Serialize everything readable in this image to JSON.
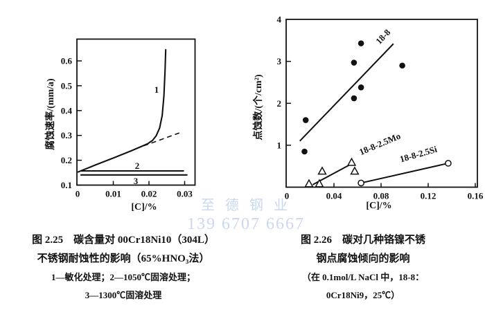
{
  "page": {
    "background": "#ffffff",
    "ink": "#111111"
  },
  "watermark": {
    "line1": "至 德 钢 业",
    "line2": "139 6707 6667",
    "color": "#c9d7f0"
  },
  "figures": {
    "left": {
      "caption": [
        "图 2.25　碳含量对 00Cr18Ni10（304L）",
        "不锈钢耐蚀性的影响（65%HNO₃法）",
        "1—敏化处理；2—1050℃固溶处理；",
        "3—1300℃固溶处理"
      ]
    },
    "right": {
      "caption": [
        "图 2.26　碳对几种铬镍不锈",
        "钢点腐蚀倾向的影响",
        "（在 0.1mol/L NaCl 中，18-8：",
        "0Cr18Ni9，25℃）"
      ]
    }
  },
  "chart_data": [
    {
      "id": "fig-2-25",
      "type": "line",
      "title": "碳含量对 00Cr18Ni10（304L）不锈钢耐蚀性的影响（65%HNO₃法）",
      "xlabel": "[C]/%",
      "ylabel": "腐蚀速率/(mm/a)",
      "xlim": [
        0,
        0.033
      ],
      "ylim": [
        0.1,
        0.69
      ],
      "grid": false,
      "legend_position": "none",
      "xticks": [
        "0",
        "0.01",
        "0.02",
        "0.03"
      ],
      "xtick_values": [
        0,
        0.01,
        0.02,
        0.03
      ],
      "yticks": [
        "0.1",
        "0.2",
        "0.3",
        "0.4",
        "0.5",
        "0.6"
      ],
      "ytick_values": [
        0.1,
        0.2,
        0.3,
        0.4,
        0.5,
        0.6
      ],
      "series": [
        {
          "name": "1",
          "legend": "敏化处理",
          "style": "solid",
          "x": [
            0,
            0.005,
            0.01,
            0.015,
            0.0196,
            0.021,
            0.022,
            0.023,
            0.0237,
            0.0242,
            0.0245,
            0.0247
          ],
          "y": [
            0.152,
            0.181,
            0.209,
            0.238,
            0.266,
            0.28,
            0.298,
            0.33,
            0.38,
            0.46,
            0.56,
            0.647
          ]
        },
        {
          "name": "1-extrapolated",
          "legend": "敏化处理（外推虚线）",
          "style": "dashed",
          "x": [
            0.0185,
            0.0285
          ],
          "y": [
            0.258,
            0.31
          ]
        },
        {
          "name": "2",
          "legend": "1050℃固溶处理",
          "style": "solid",
          "x": [
            0.0008,
            0.0298
          ],
          "y": [
            0.157,
            0.157
          ]
        },
        {
          "name": "3",
          "legend": "1300℃固溶处理",
          "style": "solid",
          "x": [
            0.0008,
            0.0308
          ],
          "y": [
            0.141,
            0.141
          ]
        }
      ]
    },
    {
      "id": "fig-2-26",
      "type": "scatter",
      "title": "碳对几种铬镍不锈钢点腐蚀倾向的影响（在 0.1mol/L NaCl 中，18-8：0Cr18Ni9，25℃）",
      "xlabel": "[C]/%",
      "ylabel": "点蚀数/(个/cm²)",
      "xlim": [
        0,
        0.16
      ],
      "ylim": [
        0,
        4
      ],
      "grid": false,
      "legend_position": "inline-rotated",
      "xticks": [
        "0",
        "0.04",
        "0.08",
        "0.12",
        "0.16"
      ],
      "xtick_values": [
        0,
        0.04,
        0.08,
        0.12,
        0.16
      ],
      "yticks": [
        "1",
        "2",
        "3",
        "4"
      ],
      "ytick_values": [
        1,
        2,
        3,
        4
      ],
      "series": [
        {
          "name": "18-8",
          "marker": "filled-circle",
          "points": [
            [
              0.015,
              0.85
            ],
            [
              0.016,
              1.6
            ],
            [
              0.057,
              2.12
            ],
            [
              0.063,
              2.38
            ],
            [
              0.057,
              2.97
            ],
            [
              0.063,
              3.43
            ],
            [
              0.098,
              2.9
            ]
          ],
          "trend": [
            [
              0.011,
              1.1
            ],
            [
              0.0905,
              3.42
            ]
          ]
        },
        {
          "name": "18-8-2.5Mo",
          "marker": "open-triangle",
          "points": [
            [
              0.0188,
              0.08
            ],
            [
              0.0276,
              0.08
            ],
            [
              0.03,
              0.38
            ],
            [
              0.055,
              0.59
            ],
            [
              0.0576,
              0.38
            ]
          ],
          "trend": [
            [
              0.022,
              0.06
            ],
            [
              0.0565,
              0.58
            ]
          ]
        },
        {
          "name": "18-8-2.5Si",
          "marker": "open-circle",
          "points": [
            [
              0.063,
              0.1
            ],
            [
              0.137,
              0.57
            ]
          ],
          "trend": [
            [
              0.063,
              0.1
            ],
            [
              0.137,
              0.57
            ]
          ]
        }
      ]
    }
  ]
}
